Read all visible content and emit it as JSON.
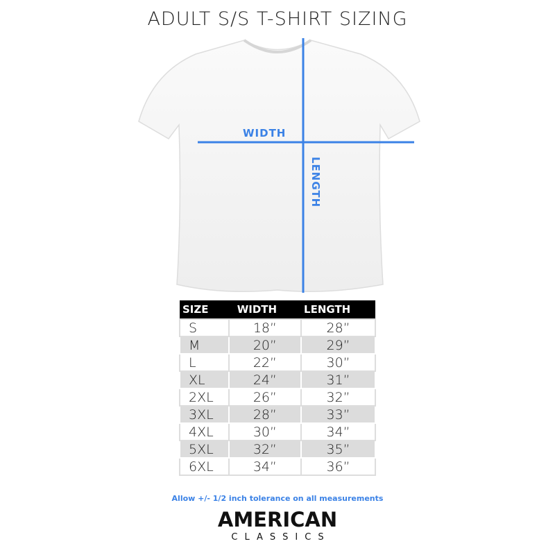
{
  "title": "ADULT S/S T-SHIRT SIZING",
  "diagram": {
    "width_label": "WIDTH",
    "length_label": "LENGTH",
    "accent_color": "#3b82e6"
  },
  "table": {
    "headers": [
      "SIZE",
      "WIDTH",
      "LENGTH"
    ],
    "rows": [
      [
        "S",
        "18”",
        "28”"
      ],
      [
        "M",
        "20”",
        "29”"
      ],
      [
        "L",
        "22”",
        "30”"
      ],
      [
        "XL",
        "24”",
        "31”"
      ],
      [
        "2XL",
        "26”",
        "32”"
      ],
      [
        "3XL",
        "28”",
        "33”"
      ],
      [
        "4XL",
        "30”",
        "34”"
      ],
      [
        "5XL",
        "32”",
        "35”"
      ],
      [
        "6XL",
        "34”",
        "36”"
      ]
    ]
  },
  "note": "Allow +/- 1/2 inch tolerance on all measurements",
  "brand": {
    "line1": "AMERICAN",
    "line2": "CLASSICS"
  }
}
